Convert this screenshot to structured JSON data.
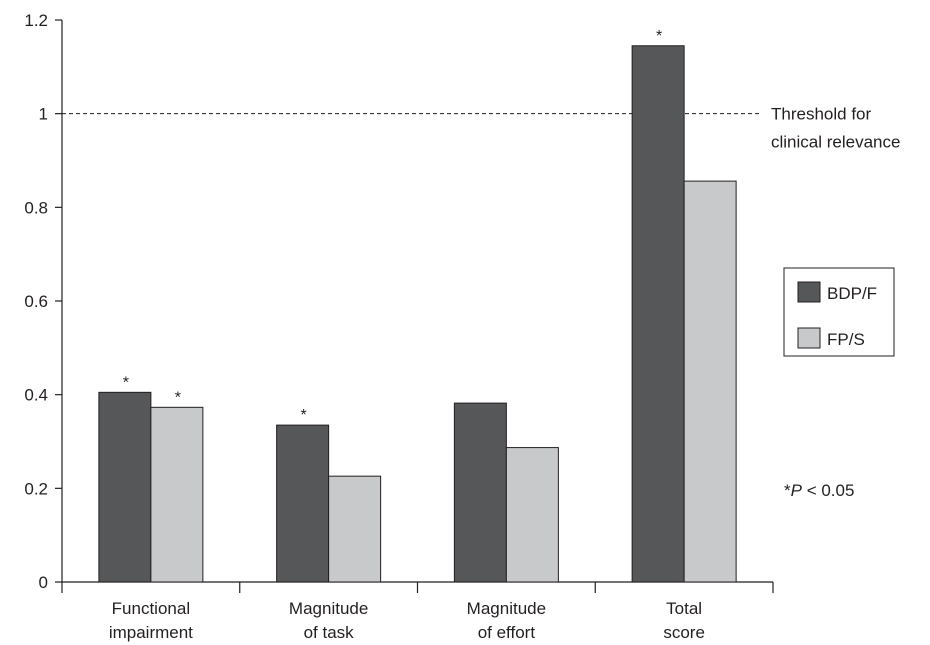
{
  "chart_data": {
    "type": "bar",
    "categories": [
      [
        "Functional",
        "impairment"
      ],
      [
        "Magnitude",
        "of task"
      ],
      [
        "Magnitude",
        "of effort"
      ],
      [
        "Total",
        "score"
      ]
    ],
    "series": [
      {
        "name": "BDP/F",
        "values": [
          0.405,
          0.335,
          0.382,
          1.145
        ],
        "color": "#555759"
      },
      {
        "name": "FP/S",
        "values": [
          0.373,
          0.226,
          0.287,
          0.856
        ],
        "color": "#c8c9cb"
      }
    ],
    "significance": [
      [
        "*",
        "*"
      ],
      [
        "*",
        ""
      ],
      [
        "",
        ""
      ],
      [
        "*",
        ""
      ]
    ],
    "ylim": [
      0,
      1.2
    ],
    "yticks": [
      "0",
      "0.2",
      "0.4",
      "0.6",
      "0.8",
      "1",
      "1.2"
    ],
    "threshold": {
      "value": 1,
      "label": [
        "Threshold for",
        "clinical relevance"
      ]
    },
    "legend_position": "right",
    "grid": false,
    "xlabel": "",
    "ylabel": ""
  },
  "footnote": {
    "prefix": "*",
    "italic": "P",
    "suffix": " < 0.05"
  }
}
